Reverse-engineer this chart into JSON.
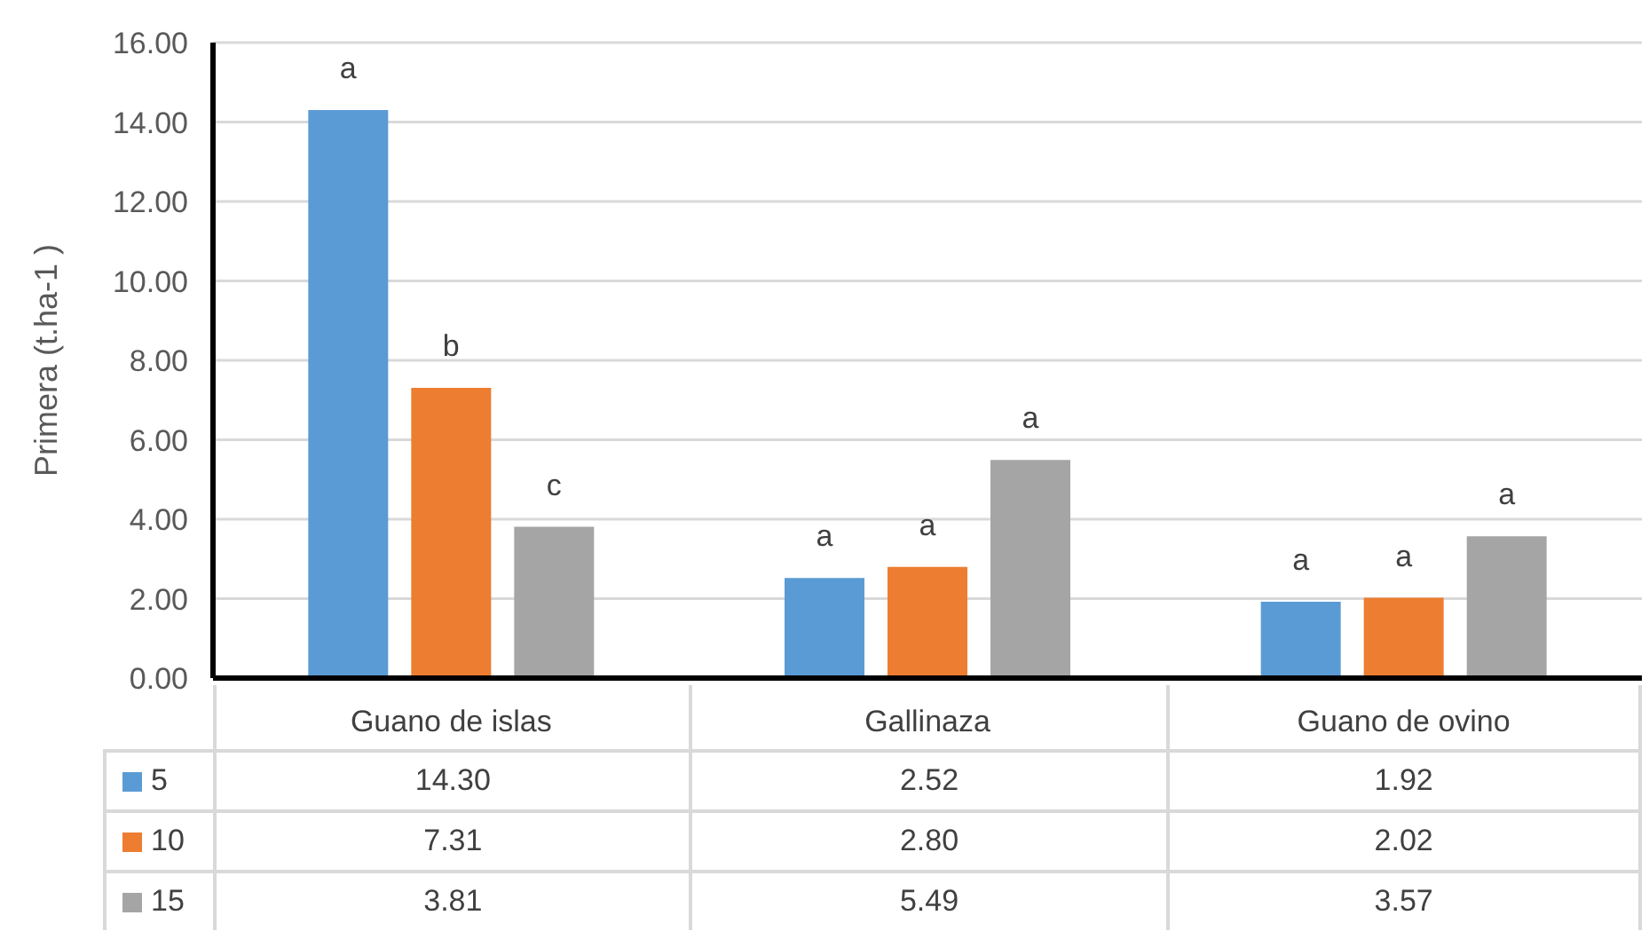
{
  "chart_data": {
    "type": "bar",
    "ylabel": "Primera (t.ha-1 )",
    "categories": [
      "Guano de islas",
      "Gallinaza",
      "Guano de ovino"
    ],
    "series": [
      {
        "name": "5",
        "color": "#5b9bd5",
        "values": [
          14.3,
          2.52,
          1.92
        ],
        "value_labels": [
          "14.30",
          "2.52",
          "1.92"
        ]
      },
      {
        "name": "10",
        "color": "#ed7d31",
        "values": [
          7.31,
          2.8,
          2.02
        ],
        "value_labels": [
          "7.31",
          "2.80",
          "2.02"
        ]
      },
      {
        "name": "15",
        "color": "#a5a5a5",
        "values": [
          3.81,
          5.49,
          3.57
        ],
        "value_labels": [
          "3.81",
          "5.49",
          "3.57"
        ]
      }
    ],
    "ylim": [
      0,
      16
    ],
    "yticks": [
      {
        "value": 0,
        "label": "0.00"
      },
      {
        "value": 2,
        "label": "2.00"
      },
      {
        "value": 4,
        "label": "4.00"
      },
      {
        "value": 6,
        "label": "6.00"
      },
      {
        "value": 8,
        "label": "8.00"
      },
      {
        "value": 10,
        "label": "10.00"
      },
      {
        "value": 12,
        "label": "12.00"
      },
      {
        "value": 14,
        "label": "14.00"
      },
      {
        "value": 16,
        "label": "16.00"
      }
    ],
    "grid": "y",
    "legend": "bottom",
    "annotations": [
      "a",
      "b",
      "c",
      "a",
      "a",
      "a",
      "a",
      "a",
      "a"
    ]
  }
}
